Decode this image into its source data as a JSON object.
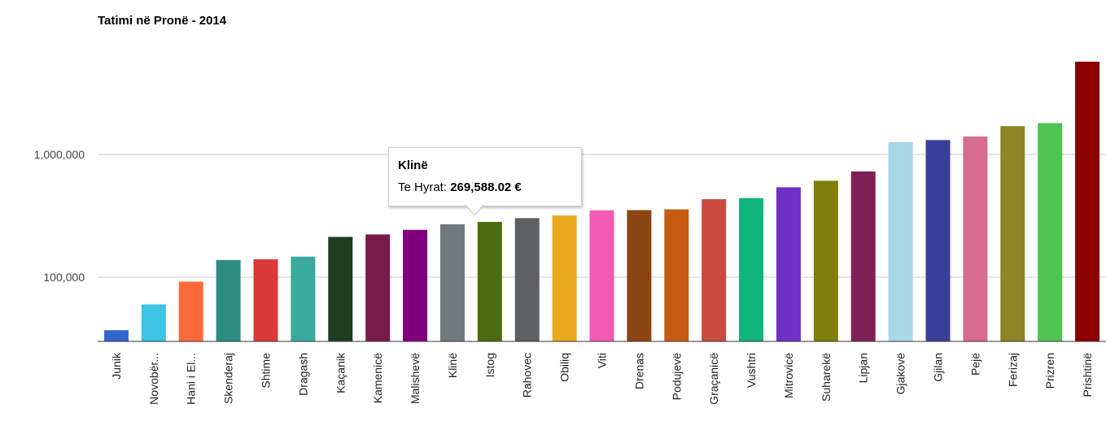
{
  "chart_data": {
    "type": "bar",
    "title": "Tatimi në Pronë - 2014",
    "y_scale": "log",
    "ylim": [
      20000,
      6000000
    ],
    "y_ticks": [
      {
        "value": 100000,
        "label": "100,000"
      },
      {
        "value": 1000000,
        "label": "1,000,000"
      }
    ],
    "grid": true,
    "categories": [
      "Junik",
      "Novobër...",
      "Hani i El...",
      "Skenderaj",
      "Shtime",
      "Dragash",
      "Kaçanik",
      "Kamenicë",
      "Malishevë",
      "Klinë",
      "Istog",
      "Rahovec",
      "Obiliq",
      "Viti",
      "Drenas",
      "Podujevë",
      "Graçanicë",
      "Vushtri",
      "Mitrovicë",
      "Suharekë",
      "Lipjan",
      "Gjakovë",
      "Gjilan",
      "Pejë",
      "Ferizaj",
      "Prizren",
      "Prishtinë"
    ],
    "series": [
      {
        "values": [
          37000,
          60000,
          92000,
          138000,
          140000,
          147000,
          213000,
          223000,
          243000,
          269588.02,
          282000,
          303000,
          318000,
          350000,
          352000,
          357000,
          432000,
          441000,
          540000,
          610000,
          727000,
          1260000,
          1310000,
          1400000,
          1700000,
          1800000,
          5700000
        ]
      }
    ],
    "colors": [
      "#3366cc",
      "#3bc4e3",
      "#ff6a3b",
      "#2e8b82",
      "#dc3939",
      "#3aa99e",
      "#1f3d1f",
      "#7a1a4a",
      "#800080",
      "#6f7a7f",
      "#4c6b10",
      "#5f6063",
      "#e8a91e",
      "#f25ab3",
      "#8b4513",
      "#c75b12",
      "#c94b3e",
      "#11b47a",
      "#7030c8",
      "#7f7f0a",
      "#7f1f55",
      "#a7d8e6",
      "#3a3f9a",
      "#d66a8f",
      "#8e8424",
      "#4fc453",
      "#8b0000"
    ]
  },
  "tooltip": {
    "title": "Klinë",
    "label": "Te Hyrat:",
    "value": "269,588.02 €"
  }
}
